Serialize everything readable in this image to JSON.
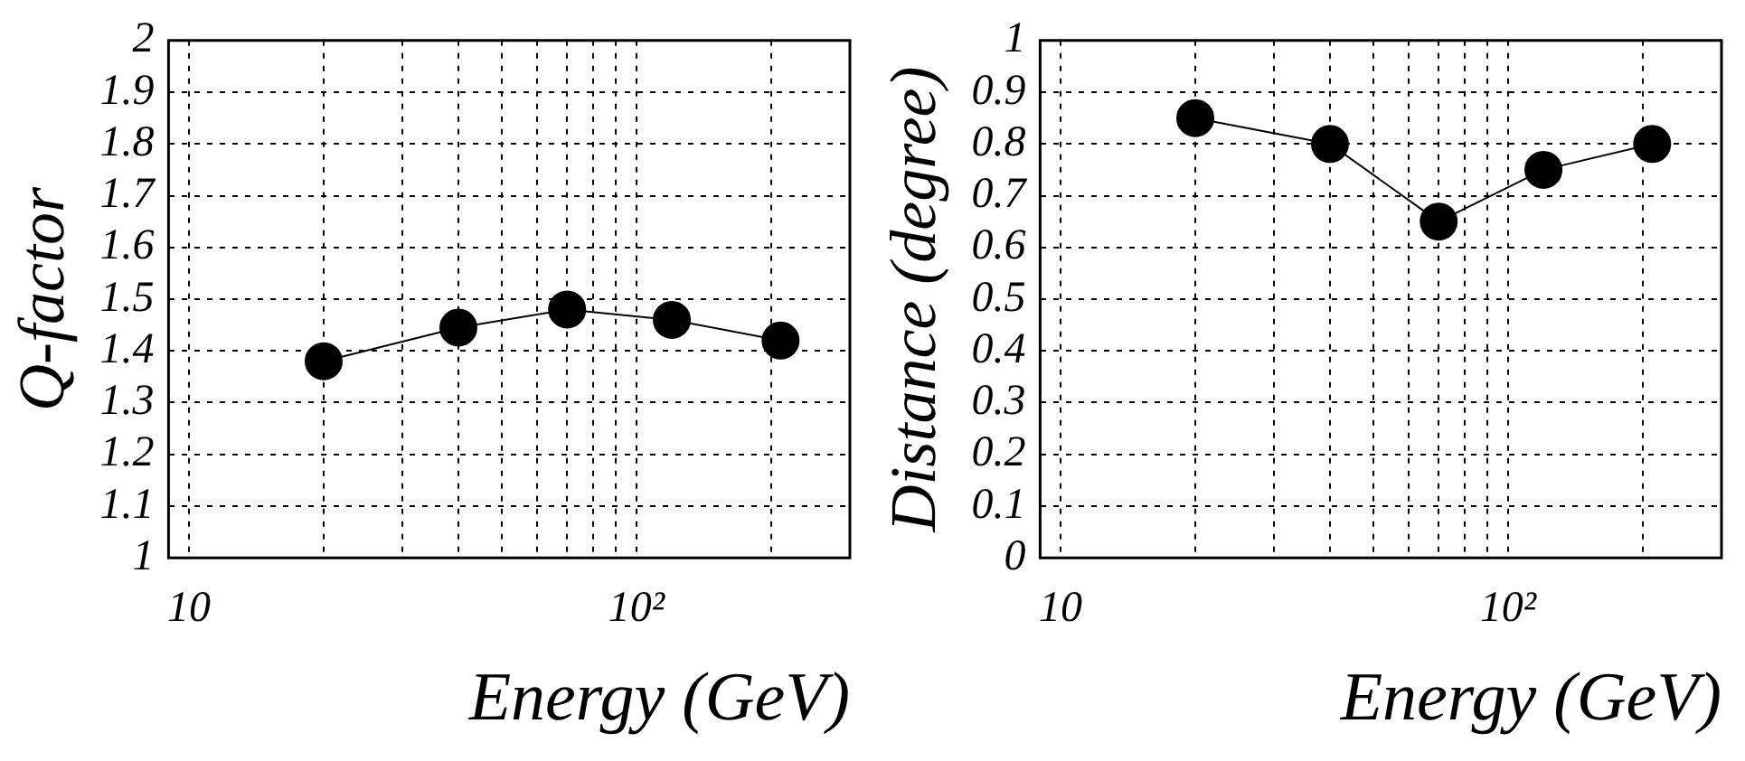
{
  "chart_data": [
    {
      "type": "line",
      "xlabel": "Energy (GeV)",
      "ylabel": "Q-factor",
      "x": [
        20,
        40,
        70,
        120,
        210
      ],
      "values": [
        1.38,
        1.445,
        1.48,
        1.46,
        1.42
      ],
      "color": "#000000",
      "marker": "circle",
      "line_style": "solid",
      "log": "x",
      "grid": true,
      "legend": false,
      "xlim": [
        9,
        300
      ],
      "xticks": [
        {
          "value": 10,
          "label": "10"
        },
        {
          "value": 20,
          "label": null
        },
        {
          "value": 30,
          "label": null
        },
        {
          "value": 40,
          "label": null
        },
        {
          "value": 50,
          "label": null
        },
        {
          "value": 60,
          "label": null
        },
        {
          "value": 70,
          "label": null
        },
        {
          "value": 80,
          "label": null
        },
        {
          "value": 90,
          "label": null
        },
        {
          "value": 100,
          "label": "10²"
        },
        {
          "value": 200,
          "label": null
        }
      ],
      "ylim": [
        1,
        2
      ],
      "yticks": [
        1,
        1.1,
        1.2,
        1.3,
        1.4,
        1.5,
        1.6,
        1.7,
        1.8,
        1.9,
        2
      ]
    },
    {
      "type": "line",
      "xlabel": "Energy (GeV)",
      "ylabel": "Distance (degree)",
      "x": [
        20,
        40,
        70,
        120,
        210
      ],
      "values": [
        0.85,
        0.8,
        0.65,
        0.75,
        0.8
      ],
      "color": "#000000",
      "marker": "circle",
      "line_style": "solid",
      "log": "x",
      "grid": true,
      "legend": false,
      "xlim": [
        9,
        300
      ],
      "xticks": [
        {
          "value": 10,
          "label": "10"
        },
        {
          "value": 20,
          "label": null
        },
        {
          "value": 30,
          "label": null
        },
        {
          "value": 40,
          "label": null
        },
        {
          "value": 50,
          "label": null
        },
        {
          "value": 60,
          "label": null
        },
        {
          "value": 70,
          "label": null
        },
        {
          "value": 80,
          "label": null
        },
        {
          "value": 90,
          "label": null
        },
        {
          "value": 100,
          "label": "10²"
        },
        {
          "value": 200,
          "label": null
        }
      ],
      "ylim": [
        0,
        1
      ],
      "yticks": [
        0,
        0.1,
        0.2,
        0.3,
        0.4,
        0.5,
        0.6,
        0.7,
        0.8,
        0.9,
        1
      ]
    }
  ]
}
